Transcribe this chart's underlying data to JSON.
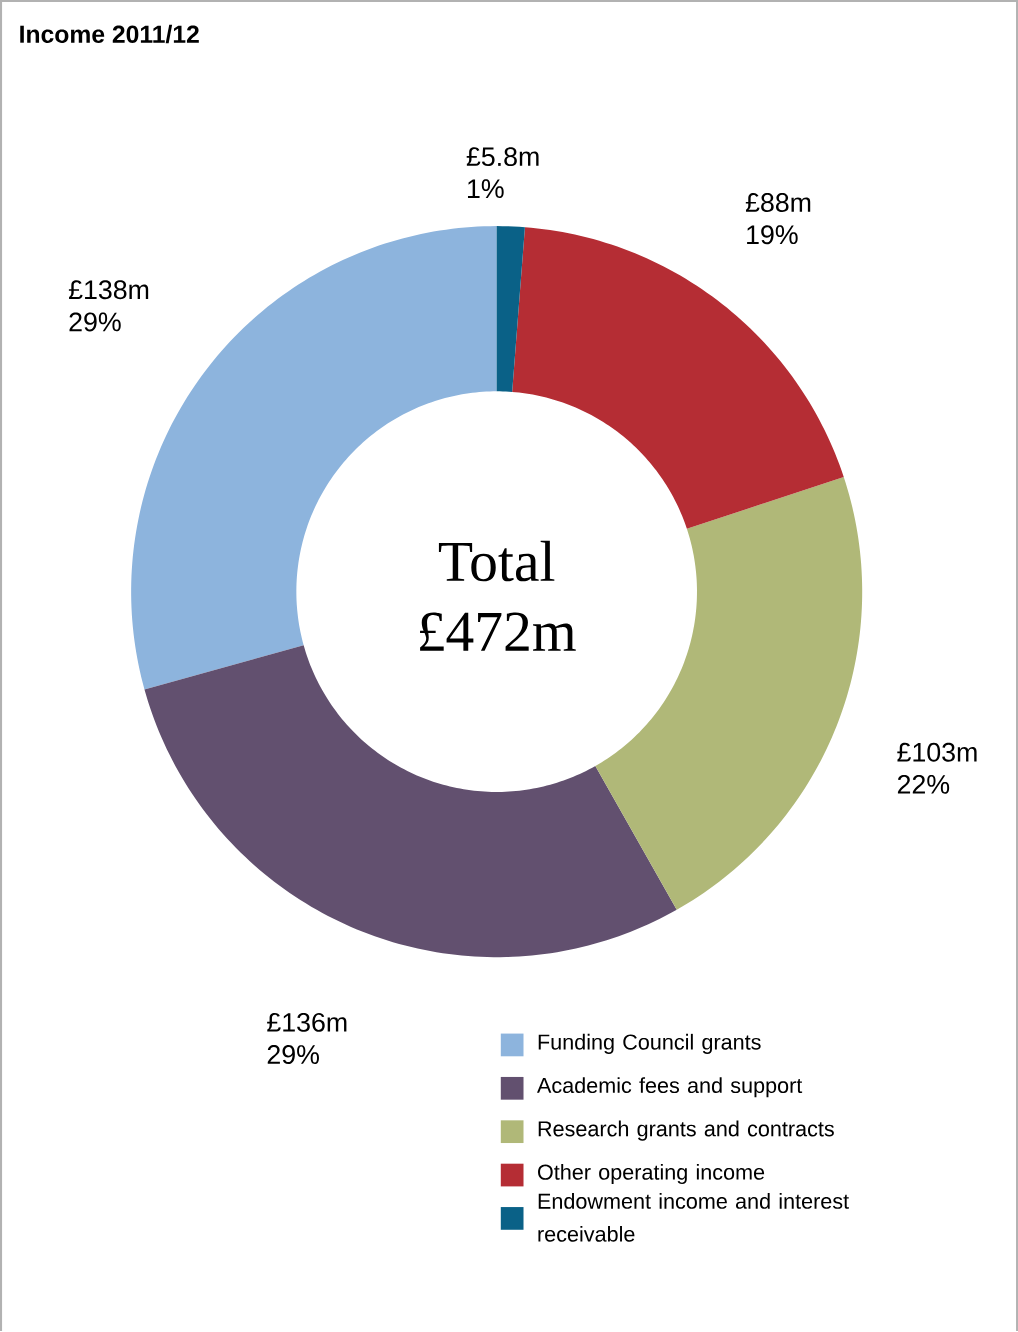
{
  "chart_data": {
    "type": "donut",
    "title": "Income 2011/12",
    "categories": [
      "Funding Council grants",
      "Academic fees and support",
      "Research grants and contracts",
      "Other operating income",
      "Endowment income and interest receivable"
    ],
    "values": [
      138,
      136,
      103,
      88,
      5.8
    ],
    "colors": [
      "#8db4dd",
      "#62506f",
      "#b0b878",
      "#b52d34",
      "#0a6187"
    ],
    "value_labels": [
      "£138m",
      "£136m",
      "£103m",
      "£88m",
      "£5.8m"
    ],
    "annotations": [
      "Total £472m",
      "29%",
      "29%",
      "22%",
      "19%",
      "1%"
    ],
    "legend": "bottom right"
  }
}
